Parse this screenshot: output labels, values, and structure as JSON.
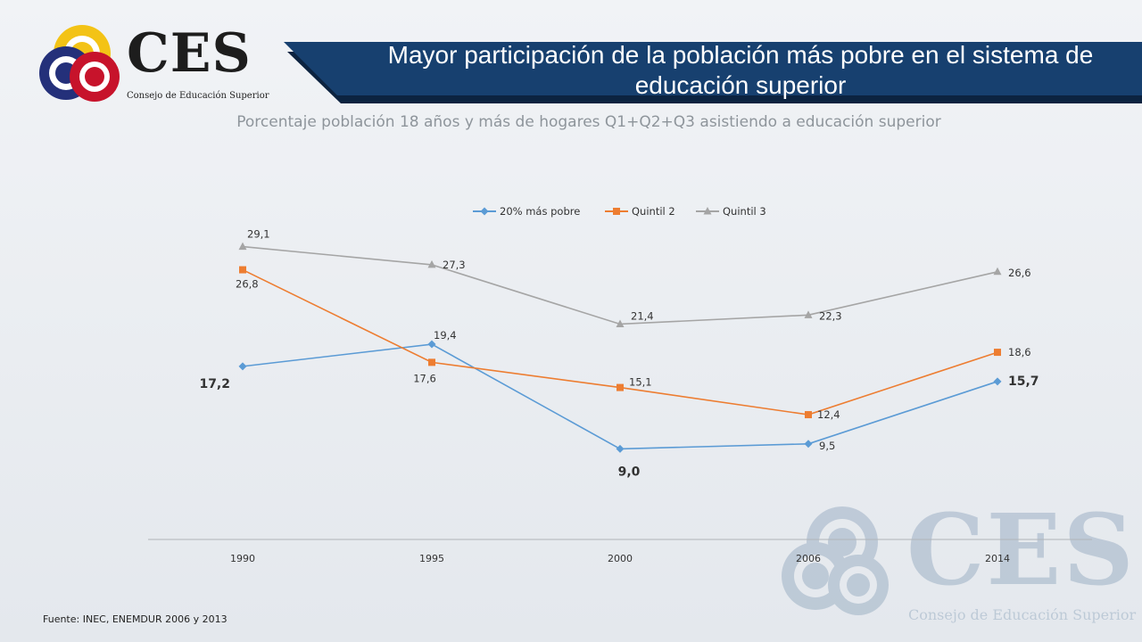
{
  "logo": {
    "word": "CES",
    "subtitle": "Consejo de Educación Superior"
  },
  "header": {
    "title": "Mayor participación de la población más pobre en el sistema de educación superior"
  },
  "chart_data": {
    "type": "line",
    "title": "Porcentaje población 18 años y más de hogares Q1+Q2+Q3 asistiendo a educación superior",
    "categories": [
      "1990",
      "1995",
      "2000",
      "2006",
      "2014"
    ],
    "ylim": [
      0,
      35
    ],
    "grid": false,
    "legend_position": "top",
    "series": [
      {
        "name": "20% más pobre",
        "color": "#5b9bd5",
        "marker": "diamond",
        "values": [
          17.2,
          19.4,
          9.0,
          9.5,
          15.7
        ],
        "labels": [
          "17,2",
          "19,4",
          "9,0",
          "9,5",
          "15,7"
        ],
        "bold": [
          true,
          false,
          true,
          false,
          true
        ]
      },
      {
        "name": "Quintil 2",
        "color": "#ed7d31",
        "marker": "square",
        "values": [
          26.8,
          17.6,
          15.1,
          12.4,
          18.6
        ],
        "labels": [
          "26,8",
          "17,6",
          "15,1",
          "12,4",
          "18,6"
        ],
        "bold": [
          false,
          false,
          false,
          false,
          false
        ]
      },
      {
        "name": "Quintil 3",
        "color": "#a5a5a5",
        "marker": "triangle",
        "values": [
          29.1,
          27.3,
          21.4,
          22.3,
          26.6
        ],
        "labels": [
          "29,1",
          "27,3",
          "21,4",
          "22,3",
          "26,6"
        ],
        "bold": [
          false,
          false,
          false,
          false,
          false
        ]
      }
    ]
  },
  "footer": {
    "source": "Fuente: INEC, ENEMDUR 2006 y 2013"
  },
  "watermark": {
    "word": "CES",
    "subtitle": "Consejo de Educación Superior"
  }
}
